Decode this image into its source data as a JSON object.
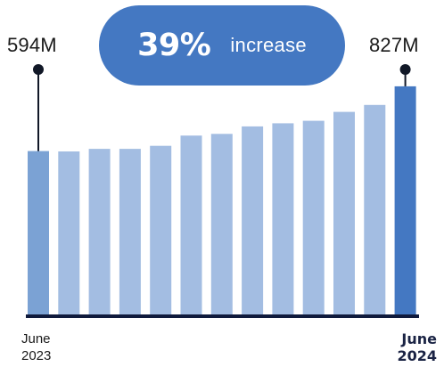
{
  "chart_data": {
    "type": "bar",
    "categories": [
      "June 2023",
      "",
      "",
      "",
      "",
      "",
      "",
      "",
      "",
      "",
      "",
      "",
      "June 2024"
    ],
    "values": [
      594,
      593,
      602,
      602,
      613,
      650,
      656,
      683,
      694,
      703,
      735,
      760,
      827
    ],
    "ylim": [
      0,
      830
    ],
    "grid": false,
    "start_label": "594M",
    "end_label": "827M",
    "start_x_label": {
      "month": "June",
      "year": "2023"
    },
    "end_x_label": {
      "month": "June",
      "year": "2024"
    },
    "highlight": {
      "percent": "39%",
      "text": "increase"
    },
    "colors": {
      "bar": "#a3bde2",
      "start_bar": "#7ba2d4",
      "end_bar": "#4478c2",
      "axis": "#0f1a3c",
      "marker": "#111827",
      "pill": "#4478c2"
    }
  }
}
